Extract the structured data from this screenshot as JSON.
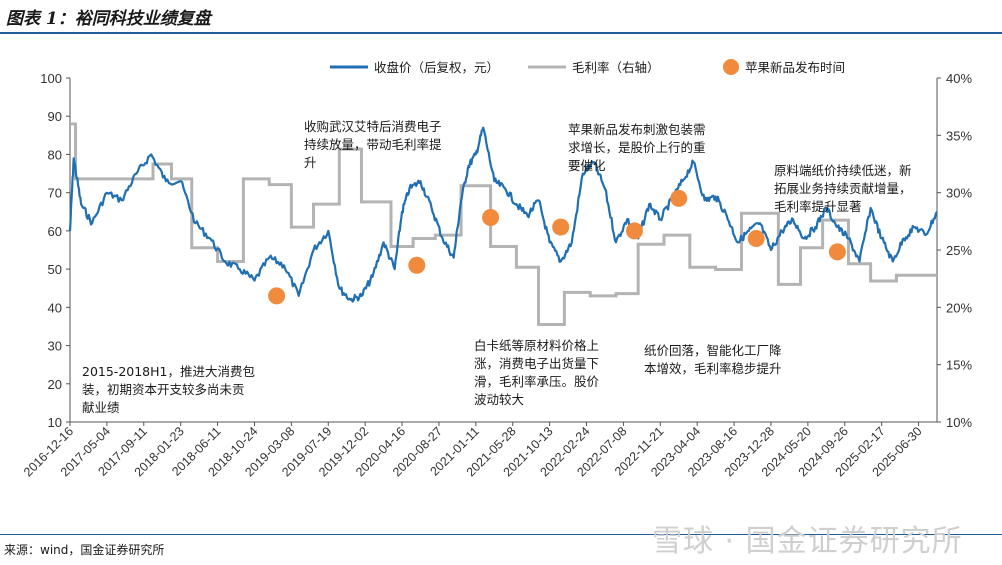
{
  "title": "图表 1：裕同科技业绩复盘",
  "source": "来源：wind，国金证券研究所",
  "watermark": "雪球 · 国金证券研究所",
  "chart_data": {
    "type": "line",
    "legend": [
      {
        "name": "收盘价（后复权，元）",
        "color": "#1f6fb2"
      },
      {
        "name": "毛利率（右轴）",
        "color": "#b3b3b3"
      },
      {
        "name": "苹果新品发布时间",
        "color": "#f08a3c"
      }
    ],
    "left_axis": {
      "min": 10,
      "max": 100,
      "ticks": [
        10,
        20,
        30,
        40,
        50,
        60,
        70,
        80,
        90,
        100
      ]
    },
    "right_axis": {
      "min": 10,
      "max": 40,
      "ticks": [
        "10%",
        "15%",
        "20%",
        "25%",
        "30%",
        "35%",
        "40%"
      ]
    },
    "x_ticks": [
      "2016-12-16",
      "2017-05-04",
      "2017-09-11",
      "2018-01-23",
      "2018-06-11",
      "2018-10-24",
      "2019-03-08",
      "2019-07-19",
      "2019-12-02",
      "2020-04-16",
      "2020-08-27",
      "2021-01-11",
      "2021-05-28",
      "2021-10-13",
      "2022-02-24",
      "2022-07-08",
      "2022-11-21",
      "2023-04-04",
      "2023-08-16",
      "2023-12-28",
      "2024-05-20",
      "2024-09-26",
      "2025-02-17",
      "2025-06-30"
    ],
    "price_series": {
      "name": "收盘价（后复权，元）",
      "t": [
        0,
        0.1,
        0.3,
        0.6,
        1.0,
        1.4,
        1.8,
        2.2,
        2.6,
        3.0,
        3.4,
        3.8,
        4.2,
        4.6,
        5.0,
        5.4,
        5.8,
        6.2,
        6.6,
        7.0,
        7.3,
        7.6,
        7.9,
        8.2,
        8.5,
        8.8,
        9.0,
        9.2,
        9.5,
        9.8,
        10.1,
        10.4,
        10.6,
        10.8,
        11.0,
        11.2,
        11.5,
        11.8,
        12.1,
        12.4,
        12.7,
        13.0,
        13.3,
        13.6,
        13.9,
        14.2,
        14.5,
        14.8,
        15.1,
        15.4,
        15.7,
        16.0,
        16.3,
        16.6,
        16.9,
        17.2,
        17.5,
        17.8,
        18.1,
        18.4,
        18.7,
        19.0,
        19.3,
        19.6,
        19.9,
        20.2,
        20.5,
        20.8,
        21.1,
        21.4,
        21.7,
        22.0,
        22.3,
        22.6,
        22.9,
        23.2,
        23.5
      ],
      "values": [
        60,
        79,
        67,
        62,
        70,
        68,
        75,
        80,
        73,
        73,
        62,
        58,
        52,
        50,
        47,
        53,
        51,
        43,
        55,
        60,
        45,
        42,
        43,
        48,
        57,
        50,
        65,
        71,
        73,
        66,
        58,
        53,
        68,
        77,
        80,
        87,
        73,
        71,
        67,
        64,
        68,
        57,
        52,
        57,
        75,
        78,
        71,
        57,
        63,
        58,
        67,
        63,
        68,
        73,
        78,
        68,
        69,
        64,
        57,
        60,
        62,
        55,
        60,
        63,
        58,
        61,
        66,
        61,
        58,
        52,
        66,
        58,
        52,
        58,
        61,
        59,
        65
      ]
    },
    "gross_margin_series": {
      "name": "毛利率（右轴）",
      "steps": [
        {
          "t0": 0,
          "t1": 0.15,
          "v": 36.0
        },
        {
          "t0": 0.15,
          "t1": 1.4,
          "v": 31.2
        },
        {
          "t0": 1.4,
          "t1": 2.25,
          "v": 31.2
        },
        {
          "t0": 2.25,
          "t1": 2.75,
          "v": 32.5
        },
        {
          "t0": 2.75,
          "t1": 3.3,
          "v": 31.2
        },
        {
          "t0": 3.3,
          "t1": 4.0,
          "v": 25.2
        },
        {
          "t0": 4.0,
          "t1": 4.7,
          "v": 24.0
        },
        {
          "t0": 4.7,
          "t1": 5.4,
          "v": 31.2
        },
        {
          "t0": 5.4,
          "t1": 6.0,
          "v": 30.7
        },
        {
          "t0": 6.0,
          "t1": 6.6,
          "v": 27.0
        },
        {
          "t0": 6.6,
          "t1": 7.3,
          "v": 29.0
        },
        {
          "t0": 7.3,
          "t1": 7.9,
          "v": 33.8
        },
        {
          "t0": 7.9,
          "t1": 8.7,
          "v": 29.2
        },
        {
          "t0": 8.7,
          "t1": 9.3,
          "v": 25.3
        },
        {
          "t0": 9.3,
          "t1": 9.9,
          "v": 26.0
        },
        {
          "t0": 9.9,
          "t1": 10.6,
          "v": 26.3
        },
        {
          "t0": 10.6,
          "t1": 11.4,
          "v": 30.6
        },
        {
          "t0": 11.4,
          "t1": 12.1,
          "v": 25.3
        },
        {
          "t0": 12.1,
          "t1": 12.7,
          "v": 23.5
        },
        {
          "t0": 12.7,
          "t1": 13.4,
          "v": 18.5
        },
        {
          "t0": 13.4,
          "t1": 14.1,
          "v": 21.3
        },
        {
          "t0": 14.1,
          "t1": 14.8,
          "v": 21.0
        },
        {
          "t0": 14.8,
          "t1": 15.4,
          "v": 21.2
        },
        {
          "t0": 15.4,
          "t1": 16.1,
          "v": 25.5
        },
        {
          "t0": 16.1,
          "t1": 16.8,
          "v": 26.3
        },
        {
          "t0": 16.8,
          "t1": 17.5,
          "v": 23.5
        },
        {
          "t0": 17.5,
          "t1": 18.2,
          "v": 23.3
        },
        {
          "t0": 18.2,
          "t1": 19.2,
          "v": 28.2
        },
        {
          "t0": 19.2,
          "t1": 19.8,
          "v": 22.0
        },
        {
          "t0": 19.8,
          "t1": 20.4,
          "v": 25.2
        },
        {
          "t0": 20.4,
          "t1": 21.1,
          "v": 27.6
        },
        {
          "t0": 21.1,
          "t1": 21.7,
          "v": 23.8
        },
        {
          "t0": 21.7,
          "t1": 22.4,
          "v": 22.3
        },
        {
          "t0": 22.4,
          "t1": 23.5,
          "v": 22.8
        }
      ]
    },
    "apple_events": [
      {
        "t": 5.6,
        "value": 43
      },
      {
        "t": 9.4,
        "value": 51
      },
      {
        "t": 11.4,
        "value": 63.5
      },
      {
        "t": 13.3,
        "value": 61
      },
      {
        "t": 15.3,
        "value": 60
      },
      {
        "t": 16.5,
        "value": 68.5
      },
      {
        "t": 18.6,
        "value": 58
      },
      {
        "t": 20.8,
        "value": 54.5
      }
    ],
    "annotations": [
      {
        "lines": [
          "2015-2018H1，推进大消费包",
          "装，初期资本开支较多尚未贡",
          "献业绩"
        ]
      },
      {
        "lines": [
          "收购武汉艾特后消费电子",
          "持续放量，带动毛利率提",
          "升"
        ]
      },
      {
        "lines": [
          "白卡纸等原材料价格上",
          "涨，消费电子出货量下",
          "滑，毛利率承压。股价",
          "波动较大"
        ]
      },
      {
        "lines": [
          "苹果新品发布刺激包装需",
          "求增长，是股价上行的重",
          "要催化"
        ]
      },
      {
        "lines": [
          "纸价回落，智能化工厂降",
          "本增效，毛利率稳步提升"
        ]
      },
      {
        "lines": [
          "原料端纸价持续低迷，新",
          "拓展业务持续贡献增量，",
          "毛利率提升显著"
        ]
      }
    ]
  }
}
